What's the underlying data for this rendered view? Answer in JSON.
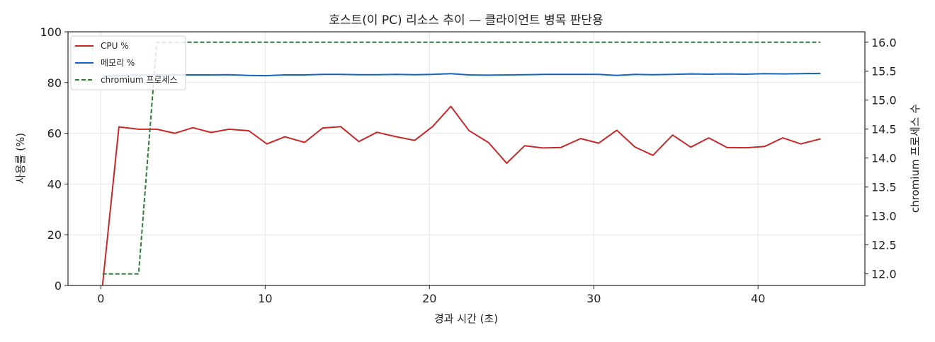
{
  "chart_data": {
    "type": "line",
    "title": "호스트(이 PC) 리소스 추이 — 클라이언트 병목 판단용",
    "xlabel": "경과 시간 (초)",
    "ylabel": "사용률 (%)",
    "y2label": "chromium 프로세스 수",
    "xlim": [
      -2,
      46.5
    ],
    "ylim": [
      0,
      100
    ],
    "y2lim": [
      11.8,
      16.18
    ],
    "xticks": [
      0,
      10,
      20,
      30,
      40
    ],
    "yticks": [
      0,
      20,
      40,
      60,
      80,
      100
    ],
    "y2ticks": [
      12.0,
      12.5,
      13.0,
      13.5,
      14.0,
      14.5,
      15.0,
      15.5,
      16.0
    ],
    "grid": true,
    "legend_position": "top-left",
    "x": [
      0.1,
      1.1,
      2.3,
      3.4,
      4.5,
      5.6,
      6.7,
      7.8,
      9.0,
      10.1,
      11.2,
      12.4,
      13.5,
      14.6,
      15.7,
      16.8,
      18.0,
      19.1,
      20.2,
      21.3,
      22.4,
      23.6,
      24.7,
      25.8,
      26.9,
      28.0,
      29.2,
      30.3,
      31.4,
      32.5,
      33.6,
      34.8,
      35.9,
      37.0,
      38.1,
      39.3,
      40.4,
      41.5,
      42.6,
      43.8
    ],
    "series": [
      {
        "name": "CPU %",
        "axis": "left",
        "color": "#c62828",
        "style": "solid",
        "values": [
          0,
          62.5,
          61.6,
          61.6,
          60,
          62.2,
          60.3,
          61.6,
          61,
          55.8,
          58.6,
          56.4,
          62.1,
          62.6,
          56.7,
          60.4,
          58.6,
          57.2,
          62.7,
          70.6,
          61.1,
          56.3,
          48.2,
          55.1,
          54.2,
          54.4,
          57.9,
          56.1,
          61.2,
          54.6,
          51.3,
          59.3,
          54.5,
          58.2,
          54.4,
          54.3,
          54.8,
          58.2,
          55.8,
          57.8
        ]
      },
      {
        "name": "메모리 %",
        "axis": "left",
        "color": "#1565c0",
        "style": "solid",
        "values": [
          82.5,
          82.8,
          82.9,
          83.0,
          83.0,
          83.0,
          83.0,
          83.1,
          82.8,
          82.7,
          83.0,
          83.0,
          83.2,
          83.2,
          83.1,
          83.1,
          83.2,
          83.1,
          83.2,
          83.5,
          83.0,
          82.9,
          83.0,
          83.1,
          83.2,
          83.2,
          83.2,
          83.2,
          82.8,
          83.2,
          83.1,
          83.2,
          83.4,
          83.3,
          83.4,
          83.3,
          83.5,
          83.4,
          83.5,
          83.6
        ]
      },
      {
        "name": "chromium 프로세스",
        "axis": "right",
        "color": "#2e7d32",
        "style": "dashed",
        "values": [
          12,
          12,
          12,
          16,
          16,
          16,
          16,
          16,
          16,
          16,
          16,
          16,
          16,
          16,
          16,
          16,
          16,
          16,
          16,
          16,
          16,
          16,
          16,
          16,
          16,
          16,
          16,
          16,
          16,
          16,
          16,
          16,
          16,
          16,
          16,
          16,
          16,
          16,
          16,
          16
        ]
      }
    ]
  }
}
